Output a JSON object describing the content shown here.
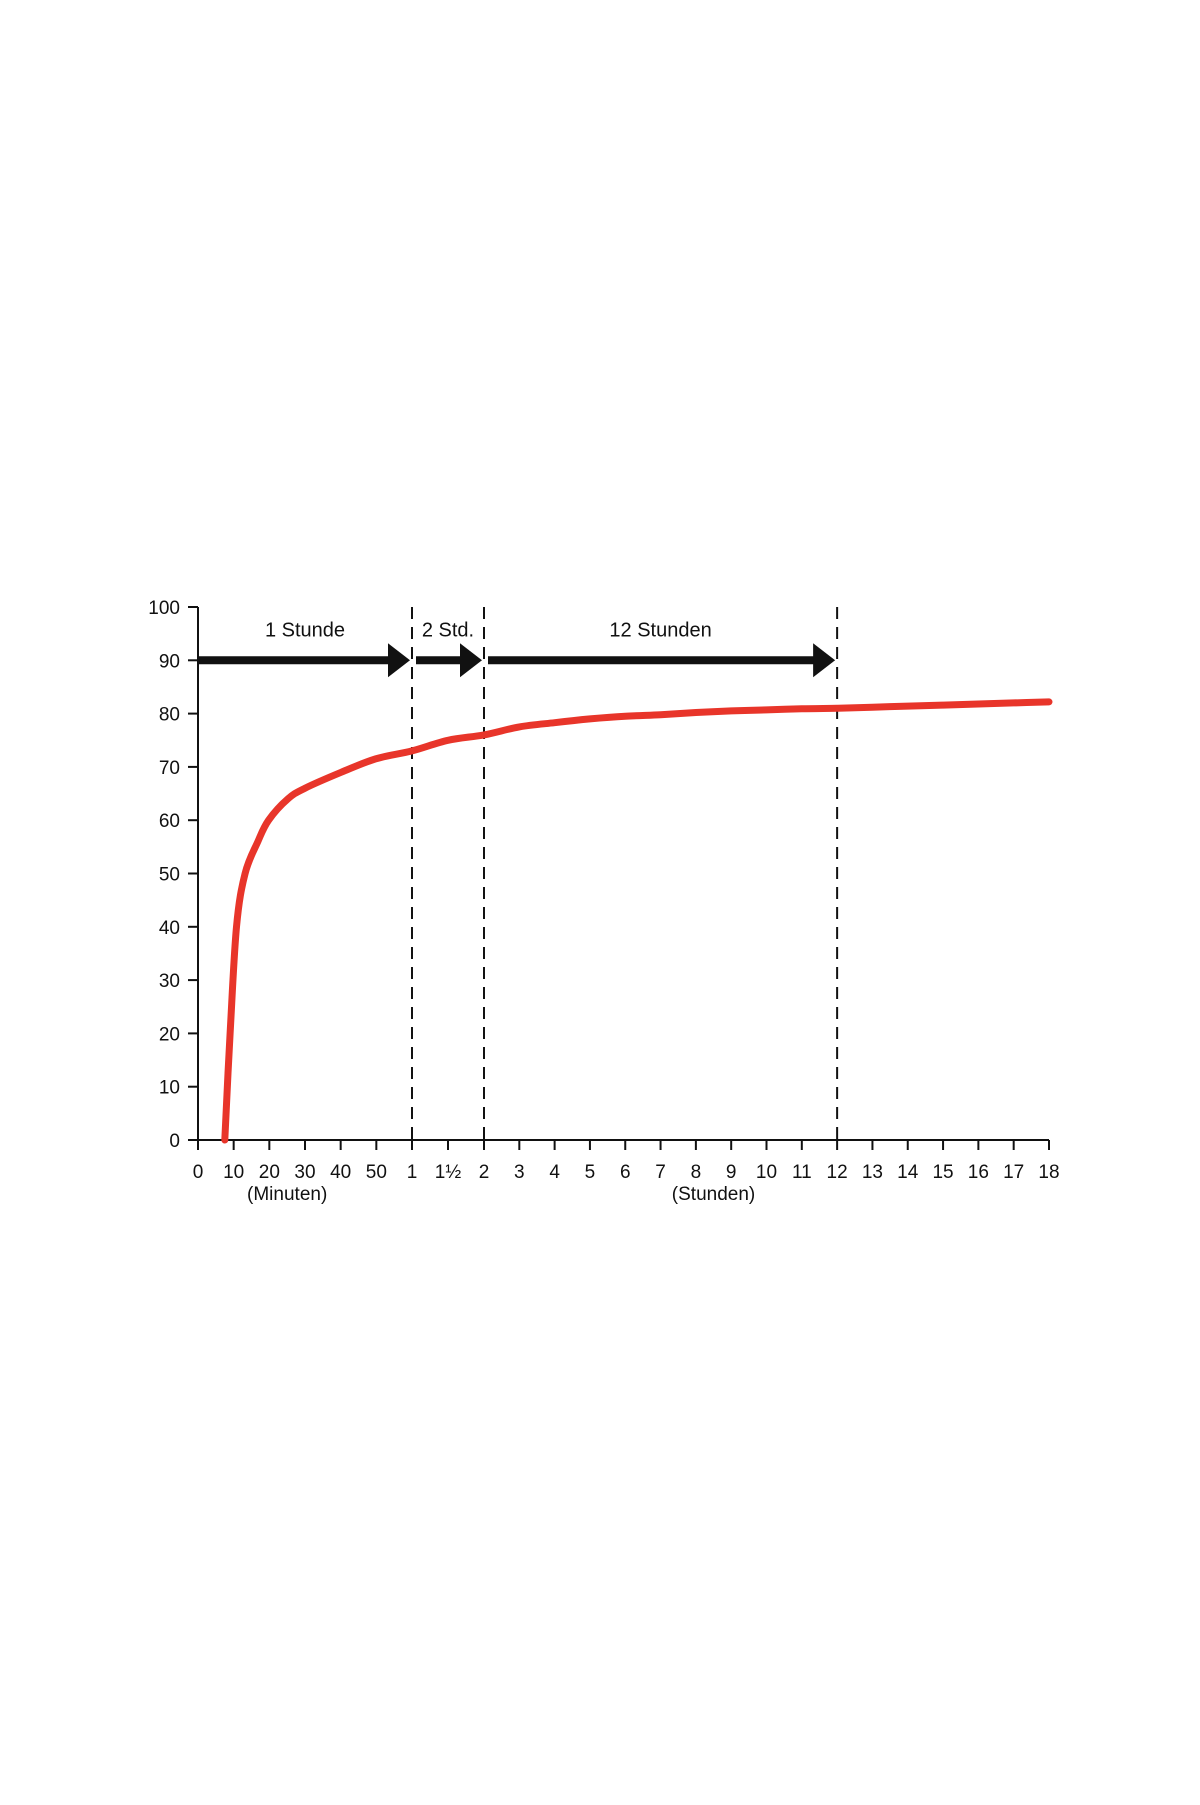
{
  "colors": {
    "curve": "#e8352a",
    "axis": "#111111",
    "arrow": "#111111",
    "divider": "#111111",
    "background": "#ffffff"
  },
  "chart_data": {
    "type": "line",
    "title": "",
    "ylabel": "",
    "ylim": [
      0,
      100
    ],
    "y_ticks": [
      0,
      10,
      20,
      30,
      40,
      50,
      60,
      70,
      80,
      90,
      100
    ],
    "y_tick_labels": [
      "0",
      "10",
      "20",
      "30",
      "40",
      "50",
      "60",
      "70",
      "80",
      "90",
      "100"
    ],
    "x_axis": {
      "minutes_ticks": [
        0,
        10,
        20,
        30,
        40,
        50
      ],
      "minutes_tick_labels": [
        "0",
        "10",
        "20",
        "30",
        "40",
        "50"
      ],
      "minutes_caption": "(Minuten)",
      "hours_ticks": [
        1,
        1.5,
        2,
        3,
        4,
        5,
        6,
        7,
        8,
        9,
        10,
        11,
        12,
        13,
        14,
        15,
        16,
        17,
        18
      ],
      "hours_tick_labels": [
        "1",
        "1½",
        "2",
        "3",
        "4",
        "5",
        "6",
        "7",
        "8",
        "9",
        "10",
        "11",
        "12",
        "13",
        "14",
        "15",
        "16",
        "17",
        "18"
      ],
      "hours_caption": "(Stunden)"
    },
    "segments": [
      {
        "label": "1 Stunde",
        "end_hours": 1
      },
      {
        "label": "2 Std.",
        "end_hours": 2
      },
      {
        "label": "12 Stunden",
        "end_hours": 12
      }
    ],
    "segment_arrow_level": 90,
    "dividers_hours": [
      1,
      2,
      12
    ],
    "series": [
      {
        "points_hours": [
          [
            0.125,
            0
          ],
          [
            0.15,
            20
          ],
          [
            0.18,
            40
          ],
          [
            0.22,
            50
          ],
          [
            0.28,
            56
          ],
          [
            0.33,
            60
          ],
          [
            0.42,
            64
          ],
          [
            0.5,
            66
          ],
          [
            0.67,
            69
          ],
          [
            0.83,
            71.5
          ],
          [
            1,
            73
          ],
          [
            1.5,
            75
          ],
          [
            2,
            76
          ],
          [
            3,
            77.5
          ],
          [
            4,
            78.3
          ],
          [
            5,
            79
          ],
          [
            6,
            79.5
          ],
          [
            7,
            79.8
          ],
          [
            8,
            80.2
          ],
          [
            9,
            80.5
          ],
          [
            10,
            80.7
          ],
          [
            11,
            80.9
          ],
          [
            12,
            81
          ],
          [
            13,
            81.2
          ],
          [
            14,
            81.4
          ],
          [
            15,
            81.6
          ],
          [
            16,
            81.8
          ],
          [
            17,
            82
          ],
          [
            18,
            82.2
          ]
        ]
      }
    ]
  }
}
